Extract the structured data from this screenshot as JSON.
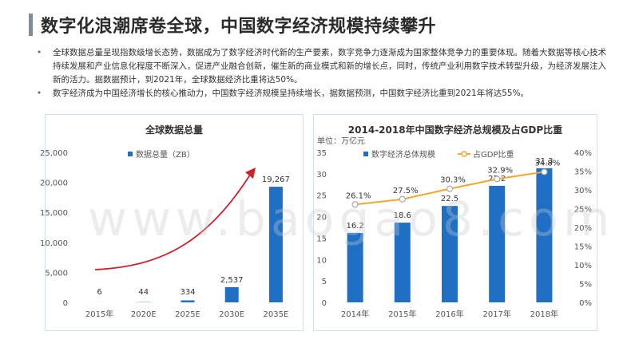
{
  "page": {
    "title": "数字化浪潮席卷全球，中国数字经济规模持续攀升",
    "bullets": [
      "全球数据总量呈现指数级增长态势，数据成为了数字经济时代新的生产要素，数字竞争力逐渐成为国家整体竞争力的重要体现。随着大数据等核心技术持续发展和产业信息化程度不断深入，促进产业融合创新，催生新的商业模式和新的增长点，同时，传统产业利用数字技术转型升级，为经济发展注入新的活力。据数据预计，到2021年，全球数据经济比重将达50%。",
      "数字经济成为中国经济增长的核心推动力，中国数字经济规模呈持续增长，据数据预测，中国数字经济比重到2021年将达55%。"
    ],
    "watermark": "www.baogao8.com"
  },
  "colors": {
    "bar": "#1f6fc5",
    "line": "#f0a830",
    "arrow": "#d0202a",
    "panel_border": "#cfe0ee"
  },
  "chart_data": [
    {
      "type": "bar",
      "title": "全球数据总量",
      "legend": "数据总量（ZB）",
      "categories": [
        "2015年",
        "2020E",
        "2025E",
        "2030E",
        "2035E"
      ],
      "values": [
        6,
        44,
        334,
        2537,
        19267
      ],
      "value_labels": [
        "6",
        "44",
        "334",
        "2,537",
        "19,267"
      ],
      "ylim": [
        0,
        25000
      ],
      "yticks": [
        "0",
        "5,000",
        "10,000",
        "15,000",
        "20,000",
        "25,000"
      ],
      "ytick_values": [
        0,
        5000,
        10000,
        15000,
        20000,
        25000
      ],
      "annotation": "exponential growth arrow"
    },
    {
      "type": "bar+line",
      "title": "2014-2018年中国数字经济总规模及占GDP比重",
      "unit": "单位：万亿元",
      "categories": [
        "2014年",
        "2015年",
        "2016年",
        "2017年",
        "2018年"
      ],
      "series": [
        {
          "name": "数字经济总体规模",
          "type": "bar",
          "values": [
            16.2,
            18.6,
            22.5,
            27.2,
            31.3
          ],
          "labels": [
            "16.2",
            "18.6",
            "22.5",
            "27.2",
            "31.3"
          ]
        },
        {
          "name": "占GDP比重",
          "type": "line",
          "values": [
            26.1,
            27.5,
            30.3,
            32.9,
            34.8
          ],
          "labels": [
            "26.1%",
            "27.5%",
            "30.3%",
            "32.9%",
            "34.8%"
          ]
        }
      ],
      "ylim_left": [
        0,
        35
      ],
      "yticks_left": [
        "0",
        "5",
        "10",
        "15",
        "20",
        "25",
        "30",
        "35"
      ],
      "ytick_values_left": [
        0,
        5,
        10,
        15,
        20,
        25,
        30,
        35
      ],
      "ylim_right": [
        0,
        40
      ],
      "yticks_right": [
        "0%",
        "5%",
        "10%",
        "15%",
        "20%",
        "25%",
        "30%",
        "35%",
        "40%"
      ],
      "ytick_values_right": [
        0,
        5,
        10,
        15,
        20,
        25,
        30,
        35,
        40
      ]
    }
  ]
}
